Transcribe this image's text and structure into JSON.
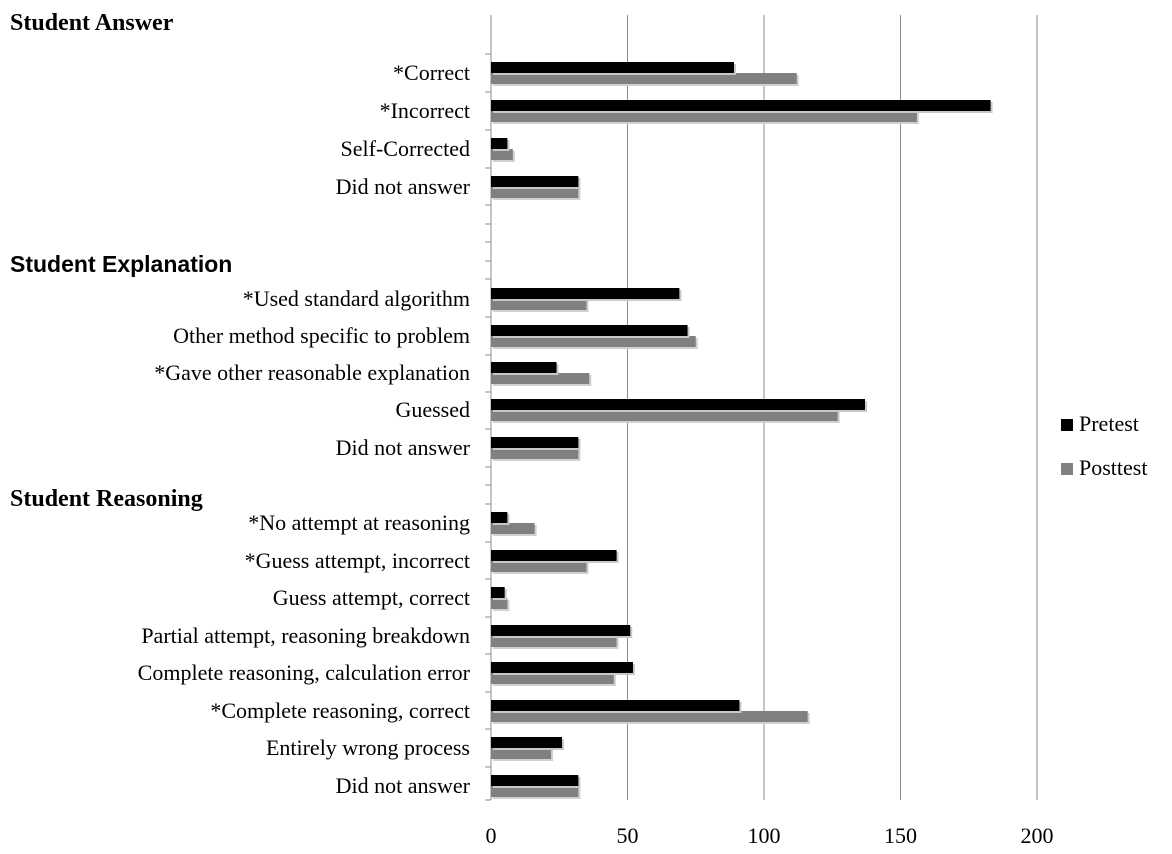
{
  "chart_data": {
    "type": "bar",
    "orientation": "horizontal",
    "xlim": [
      0,
      200
    ],
    "xticks": [
      0,
      50,
      100,
      150,
      200
    ],
    "grid": "vertical",
    "legend_position": "right",
    "colors": {
      "Pretest": "#000000",
      "Posttest": "#808080"
    },
    "sections": [
      {
        "title": "Student Answer",
        "items": [
          {
            "label": "*Correct",
            "pretest": 89,
            "posttest": 112
          },
          {
            "label": "*Incorrect",
            "pretest": 183,
            "posttest": 156
          },
          {
            "label": "Self-Corrected",
            "pretest": 6,
            "posttest": 8
          },
          {
            "label": "Did not answer",
            "pretest": 32,
            "posttest": 32
          }
        ]
      },
      {
        "title": "Student Explanation",
        "items": [
          {
            "label": "*Used standard algorithm",
            "pretest": 69,
            "posttest": 35
          },
          {
            "label": "Other method specific to problem",
            "pretest": 72,
            "posttest": 75
          },
          {
            "label": "*Gave other reasonable explanation",
            "pretest": 24,
            "posttest": 36
          },
          {
            "label": "Guessed",
            "pretest": 137,
            "posttest": 127
          },
          {
            "label": "Did not answer",
            "pretest": 32,
            "posttest": 32
          }
        ]
      },
      {
        "title": "Student Reasoning",
        "items": [
          {
            "label": "*No attempt at reasoning",
            "pretest": 6,
            "posttest": 16
          },
          {
            "label": "*Guess attempt, incorrect",
            "pretest": 46,
            "posttest": 35
          },
          {
            "label": "Guess attempt, correct",
            "pretest": 5,
            "posttest": 6
          },
          {
            "label": "Partial attempt, reasoning breakdown",
            "pretest": 51,
            "posttest": 46
          },
          {
            "label": "Complete reasoning, calculation error",
            "pretest": 52,
            "posttest": 45
          },
          {
            "label": "*Complete reasoning, correct",
            "pretest": 91,
            "posttest": 116
          },
          {
            "label": "Entirely wrong process",
            "pretest": 26,
            "posttest": 22
          },
          {
            "label": "Did not answer",
            "pretest": 32,
            "posttest": 32
          }
        ]
      }
    ],
    "series": [
      {
        "name": "Pretest",
        "color": "#000000"
      },
      {
        "name": "Posttest",
        "color": "#808080"
      }
    ]
  }
}
